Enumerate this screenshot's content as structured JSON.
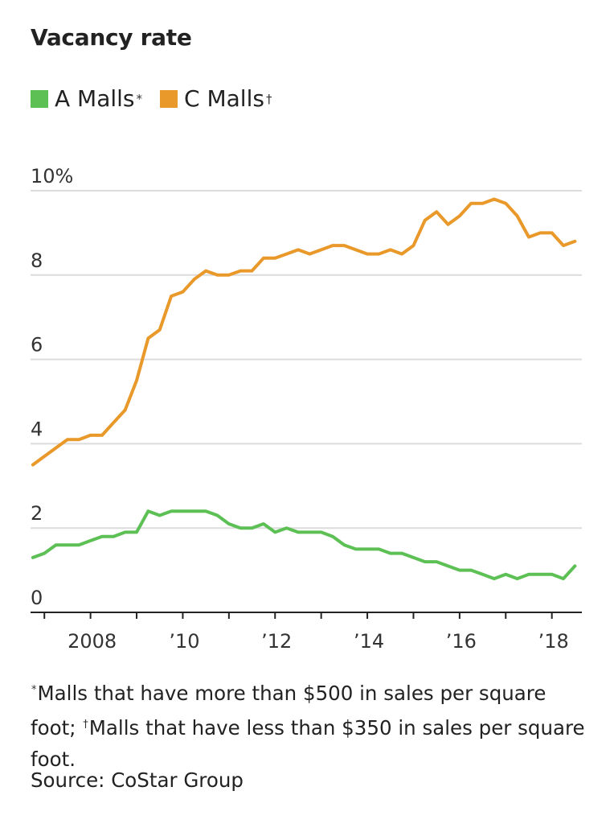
{
  "title": "Vacancy rate",
  "legend": [
    {
      "label": "A Malls",
      "mark": "*",
      "color": "#5dc054"
    },
    {
      "label": "C Malls",
      "mark": "†",
      "color": "#e9982a"
    }
  ],
  "chart_data": {
    "type": "line",
    "xlabel": "",
    "ylabel": "",
    "ylim": [
      0,
      10
    ],
    "xlim": [
      2006.7,
      2018.65
    ],
    "grid": true,
    "x_ticks": [
      2008,
      2010,
      2012,
      2014,
      2016,
      2018
    ],
    "x_tick_labels": [
      "2008",
      "’10",
      "’12",
      "’14",
      "’16",
      "’18"
    ],
    "y_ticks": [
      0,
      2,
      4,
      6,
      8,
      10
    ],
    "y_tick_labels": [
      "0",
      "2",
      "4",
      "6",
      "8",
      "10%"
    ],
    "x": [
      2006.75,
      2007.0,
      2007.25,
      2007.5,
      2007.75,
      2008.0,
      2008.25,
      2008.5,
      2008.75,
      2009.0,
      2009.25,
      2009.5,
      2009.75,
      2010.0,
      2010.25,
      2010.5,
      2010.75,
      2011.0,
      2011.25,
      2011.5,
      2011.75,
      2012.0,
      2012.25,
      2012.5,
      2012.75,
      2013.0,
      2013.25,
      2013.5,
      2013.75,
      2014.0,
      2014.25,
      2014.5,
      2014.75,
      2015.0,
      2015.25,
      2015.5,
      2015.75,
      2016.0,
      2016.25,
      2016.5,
      2016.75,
      2017.0,
      2017.25,
      2017.5,
      2017.75,
      2018.0,
      2018.25,
      2018.5
    ],
    "series": [
      {
        "name": "A Malls",
        "color": "#5dc054",
        "values": [
          1.3,
          1.4,
          1.6,
          1.6,
          1.6,
          1.7,
          1.8,
          1.8,
          1.9,
          1.9,
          2.4,
          2.3,
          2.4,
          2.4,
          2.4,
          2.4,
          2.3,
          2.1,
          2.0,
          2.0,
          2.1,
          1.9,
          2.0,
          1.9,
          1.9,
          1.9,
          1.8,
          1.6,
          1.5,
          1.5,
          1.5,
          1.4,
          1.4,
          1.3,
          1.2,
          1.2,
          1.1,
          1.0,
          1.0,
          0.9,
          0.8,
          0.9,
          0.8,
          0.9,
          0.9,
          0.9,
          0.8,
          1.1
        ]
      },
      {
        "name": "C Malls",
        "color": "#e9982a",
        "values": [
          3.5,
          3.7,
          3.9,
          4.1,
          4.1,
          4.2,
          4.2,
          4.5,
          4.8,
          5.5,
          6.5,
          6.7,
          7.5,
          7.6,
          7.9,
          8.1,
          8.0,
          8.0,
          8.1,
          8.1,
          8.4,
          8.4,
          8.5,
          8.6,
          8.5,
          8.6,
          8.7,
          8.7,
          8.6,
          8.5,
          8.5,
          8.6,
          8.5,
          8.7,
          9.3,
          9.5,
          9.2,
          9.4,
          9.7,
          9.7,
          9.8,
          9.7,
          9.4,
          8.9,
          9.0,
          9.0,
          8.7,
          8.8
        ]
      }
    ]
  },
  "footnote": {
    "mark_a": "*",
    "text_a": "Malls that have more than $500 in sales per square foot;",
    "mark_c": "†",
    "text_c": "Malls that have less than $350 in sales per square foot."
  },
  "source": "Source: CoStar Group"
}
